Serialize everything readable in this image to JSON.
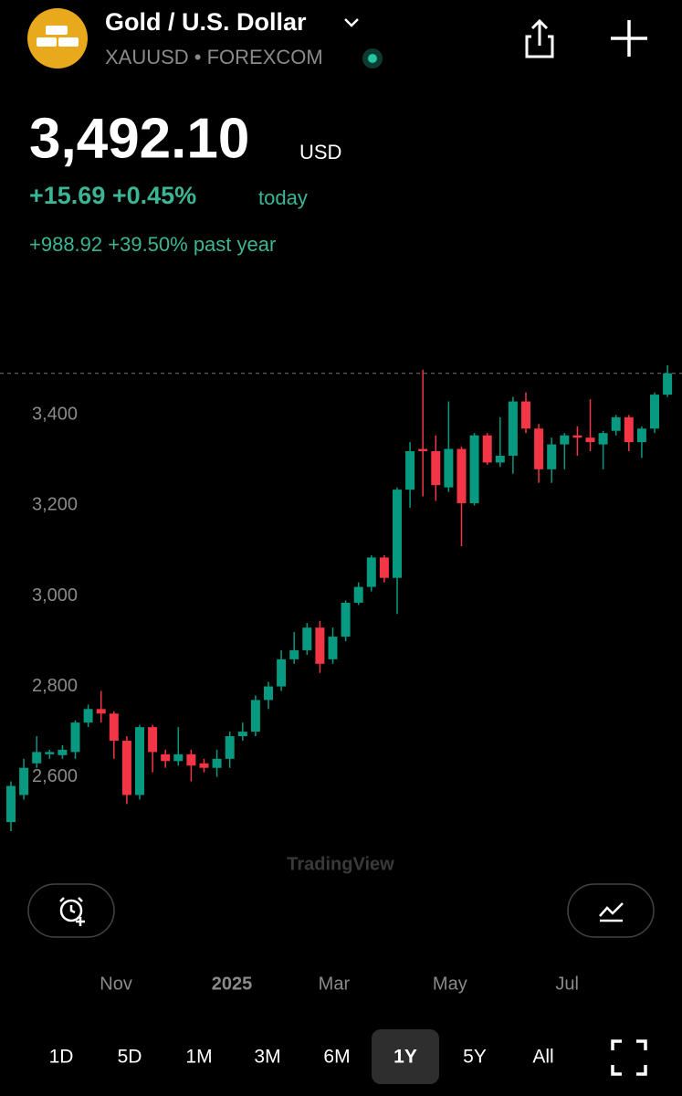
{
  "header": {
    "title": "Gold / U.S. Dollar",
    "subtitle": "XAUUSD • FOREXCOM",
    "price": "3,492.10",
    "currency": "USD",
    "change_today": "+15.69 +0.45%",
    "today_label": "today",
    "change_year": "+988.92 +39.50% past year"
  },
  "chart_data": {
    "type": "candlestick",
    "open": [
      2500,
      2560,
      2630,
      2650,
      2648,
      2655,
      2720,
      2750,
      2740,
      2680,
      2560,
      2710,
      2650,
      2635,
      2650,
      2630,
      2620,
      2640,
      2690,
      2700,
      2770,
      2800,
      2860,
      2880,
      2930,
      2860,
      2910,
      2985,
      3020,
      3085,
      3040,
      3235,
      3325,
      3320,
      3240,
      3325,
      3205,
      3355,
      3295,
      3310,
      3430,
      3370,
      3280,
      3335,
      3355,
      3350,
      3335,
      3365,
      3395,
      3340,
      3370,
      3445
    ],
    "high": [
      2590,
      2640,
      2690,
      2660,
      2670,
      2725,
      2760,
      2790,
      2745,
      2690,
      2715,
      2715,
      2660,
      2710,
      2660,
      2640,
      2660,
      2700,
      2720,
      2780,
      2810,
      2880,
      2920,
      2940,
      2945,
      2930,
      2990,
      3030,
      3090,
      3090,
      3240,
      3340,
      3500,
      3355,
      3430,
      3330,
      3360,
      3360,
      3395,
      3440,
      3450,
      3380,
      3350,
      3360,
      3375,
      3435,
      3365,
      3400,
      3400,
      3375,
      3450,
      3510
    ],
    "low": [
      2480,
      2550,
      2620,
      2640,
      2640,
      2640,
      2710,
      2720,
      2640,
      2540,
      2550,
      2610,
      2620,
      2625,
      2590,
      2610,
      2600,
      2620,
      2680,
      2690,
      2750,
      2790,
      2850,
      2870,
      2830,
      2850,
      2900,
      2980,
      3010,
      3030,
      2960,
      3195,
      3220,
      3210,
      3230,
      3110,
      3200,
      3290,
      3285,
      3270,
      3360,
      3250,
      3250,
      3280,
      3310,
      3320,
      3280,
      3355,
      3320,
      3305,
      3360,
      3440
    ],
    "close": [
      2580,
      2620,
      2655,
      2655,
      2660,
      2720,
      2750,
      2740,
      2680,
      2560,
      2710,
      2655,
      2635,
      2650,
      2625,
      2620,
      2640,
      2690,
      2700,
      2770,
      2800,
      2860,
      2880,
      2930,
      2850,
      2910,
      2985,
      3020,
      3085,
      3040,
      3235,
      3320,
      3320,
      3245,
      3325,
      3205,
      3355,
      3295,
      3310,
      3430,
      3370,
      3280,
      3335,
      3355,
      3350,
      3340,
      3360,
      3395,
      3340,
      3370,
      3445,
      3492.1
    ],
    "last_price": 3492.1,
    "up_color": "#089981",
    "down_color": "#f23645",
    "ylim": [
      2470,
      3530
    ],
    "yticks": [
      {
        "value": 2600,
        "label": "2,600"
      },
      {
        "value": 2800,
        "label": "2,800"
      },
      {
        "value": 3000,
        "label": "3,000"
      },
      {
        "value": 3200,
        "label": "3,200"
      },
      {
        "value": 3400,
        "label": "3,400"
      }
    ],
    "xticks": [
      {
        "value": 8.16,
        "label": "Nov"
      },
      {
        "value": 17.16,
        "label": "2025"
      },
      {
        "value": 25.1,
        "label": "Mar"
      },
      {
        "value": 34.1,
        "label": "May"
      },
      {
        "value": 43.2,
        "label": "Jul"
      }
    ],
    "watermark": "TradingView"
  },
  "controls": {
    "timeframes": [
      "1D",
      "5D",
      "1M",
      "3M",
      "6M",
      "1Y",
      "5Y",
      "All"
    ],
    "selected": "1Y"
  }
}
